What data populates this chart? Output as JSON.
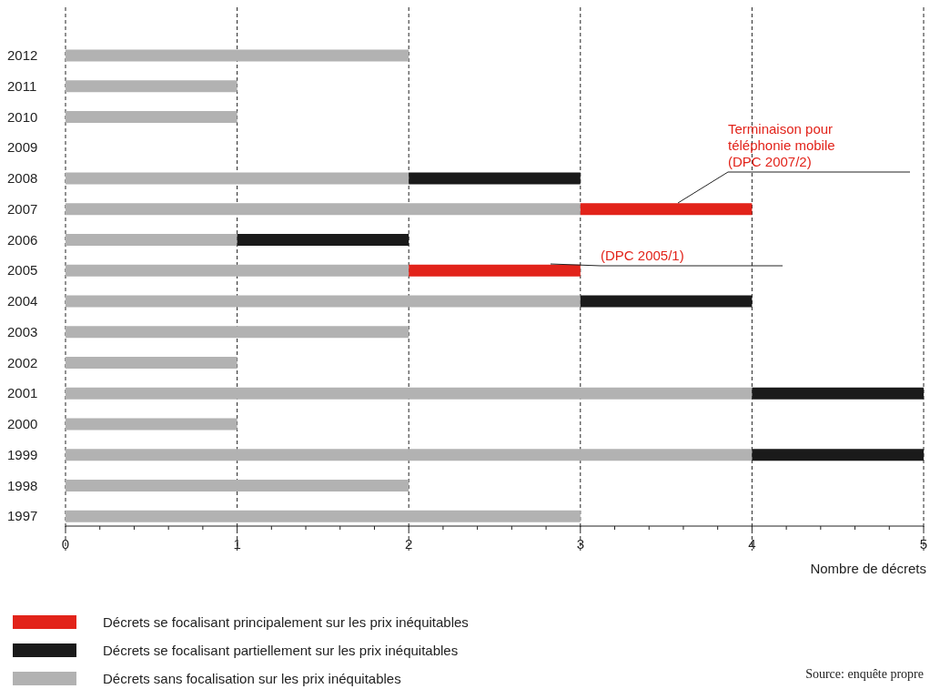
{
  "chart_data": {
    "type": "bar",
    "orientation": "horizontal",
    "stacked": true,
    "xlabel": "Nombre de décrets",
    "categories": [
      "2012",
      "2011",
      "2010",
      "2009",
      "2008",
      "2007",
      "2006",
      "2005",
      "2004",
      "2003",
      "2002",
      "2001",
      "2000",
      "1999",
      "1998",
      "1997"
    ],
    "series": [
      {
        "name": "Décrets sans focalisation sur les prix inéquitables",
        "color": "#b2b2b2",
        "values": [
          2,
          1,
          1,
          0,
          2,
          3,
          1,
          2,
          3,
          2,
          1,
          4,
          1,
          4,
          2,
          3
        ]
      },
      {
        "name": "Décrets se focalisant partiellement sur les prix inéquitables",
        "color": "#1a1a1a",
        "values": [
          0,
          0,
          0,
          0,
          1,
          0,
          1,
          0,
          1,
          0,
          0,
          1,
          0,
          1,
          0,
          0
        ]
      },
      {
        "name": "Décrets se focalisant principalement sur les prix inéquitables",
        "color": "#e2231a",
        "values": [
          0,
          0,
          0,
          0,
          0,
          1,
          0,
          1,
          0,
          0,
          0,
          0,
          0,
          0,
          0,
          0
        ]
      }
    ],
    "xlim": [
      0,
      5
    ],
    "xticks": [
      0,
      1,
      2,
      3,
      4,
      5
    ],
    "grid": "x",
    "legend": "bottom",
    "annotations": [
      "Terminaison pour\ntéléphonie mobile\n(DPC 2007/2)",
      "(DPC 2005/1)",
      "Source: enquête propre"
    ]
  }
}
